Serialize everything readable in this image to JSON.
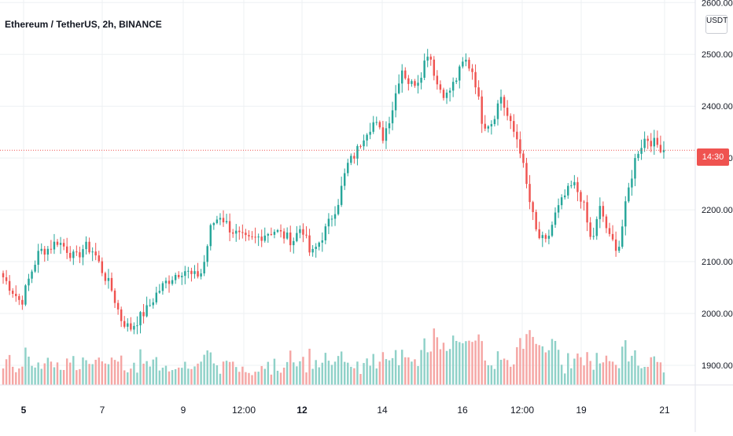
{
  "header": {
    "symbol_title": "Ethereum / TetherUS, 2h, BINANCE"
  },
  "price_scale": {
    "currency_label": "USDT",
    "current_tag": "14:30",
    "top_tick_partial": "2600.00"
  },
  "colors": {
    "up": "#26a69a",
    "down": "#ef5350",
    "volume_up": "#8fd1c8",
    "volume_down": "#f5a6a4",
    "grid": "#eef0f3",
    "axis_text": "#131722",
    "price_line": "#ef5350"
  },
  "chart_data": {
    "type": "candlestick",
    "symbol": "Ethereum / TetherUS",
    "interval": "2h",
    "exchange": "BINANCE",
    "y_axis": {
      "ticks": [
        1900,
        2000,
        2100,
        2200,
        2300,
        2400,
        2500,
        2600
      ],
      "tick_labels": [
        "1900.00",
        "2000.00",
        "2100.00",
        "2200.00",
        "2300.00",
        "2400.00",
        "2500.00",
        "2600.00"
      ],
      "ylim": [
        1862,
        2605
      ]
    },
    "x_axis": {
      "labels": [
        {
          "text": "5",
          "bold": true
        },
        {
          "text": "7",
          "bold": false
        },
        {
          "text": "9",
          "bold": false
        },
        {
          "text": "12:00",
          "bold": false
        },
        {
          "text": "12",
          "bold": true
        },
        {
          "text": "14",
          "bold": false
        },
        {
          "text": "16",
          "bold": false
        },
        {
          "text": "12:00",
          "bold": false
        },
        {
          "text": "19",
          "bold": false
        },
        {
          "text": "21",
          "bold": false
        }
      ]
    },
    "current_price": 2315,
    "close_anchors": [
      2070,
      2045,
      2020,
      2075,
      2120,
      2125,
      2140,
      2125,
      2105,
      2130,
      2120,
      2080,
      2045,
      1990,
      1970,
      1990,
      2010,
      2040,
      2060,
      2075,
      2085,
      2070,
      2080,
      2170,
      2190,
      2165,
      2150,
      2140,
      2145,
      2155,
      2160,
      2150,
      2140,
      2170,
      2110,
      2140,
      2175,
      2215,
      2285,
      2310,
      2350,
      2370,
      2340,
      2395,
      2475,
      2440,
      2455,
      2510,
      2440,
      2420,
      2450,
      2490,
      2465,
      2365,
      2370,
      2420,
      2365,
      2330,
      2230,
      2150,
      2135,
      2190,
      2225,
      2250,
      2220,
      2135,
      2205,
      2145,
      2125,
      2230,
      2310,
      2340,
      2328,
      2318
    ]
  }
}
